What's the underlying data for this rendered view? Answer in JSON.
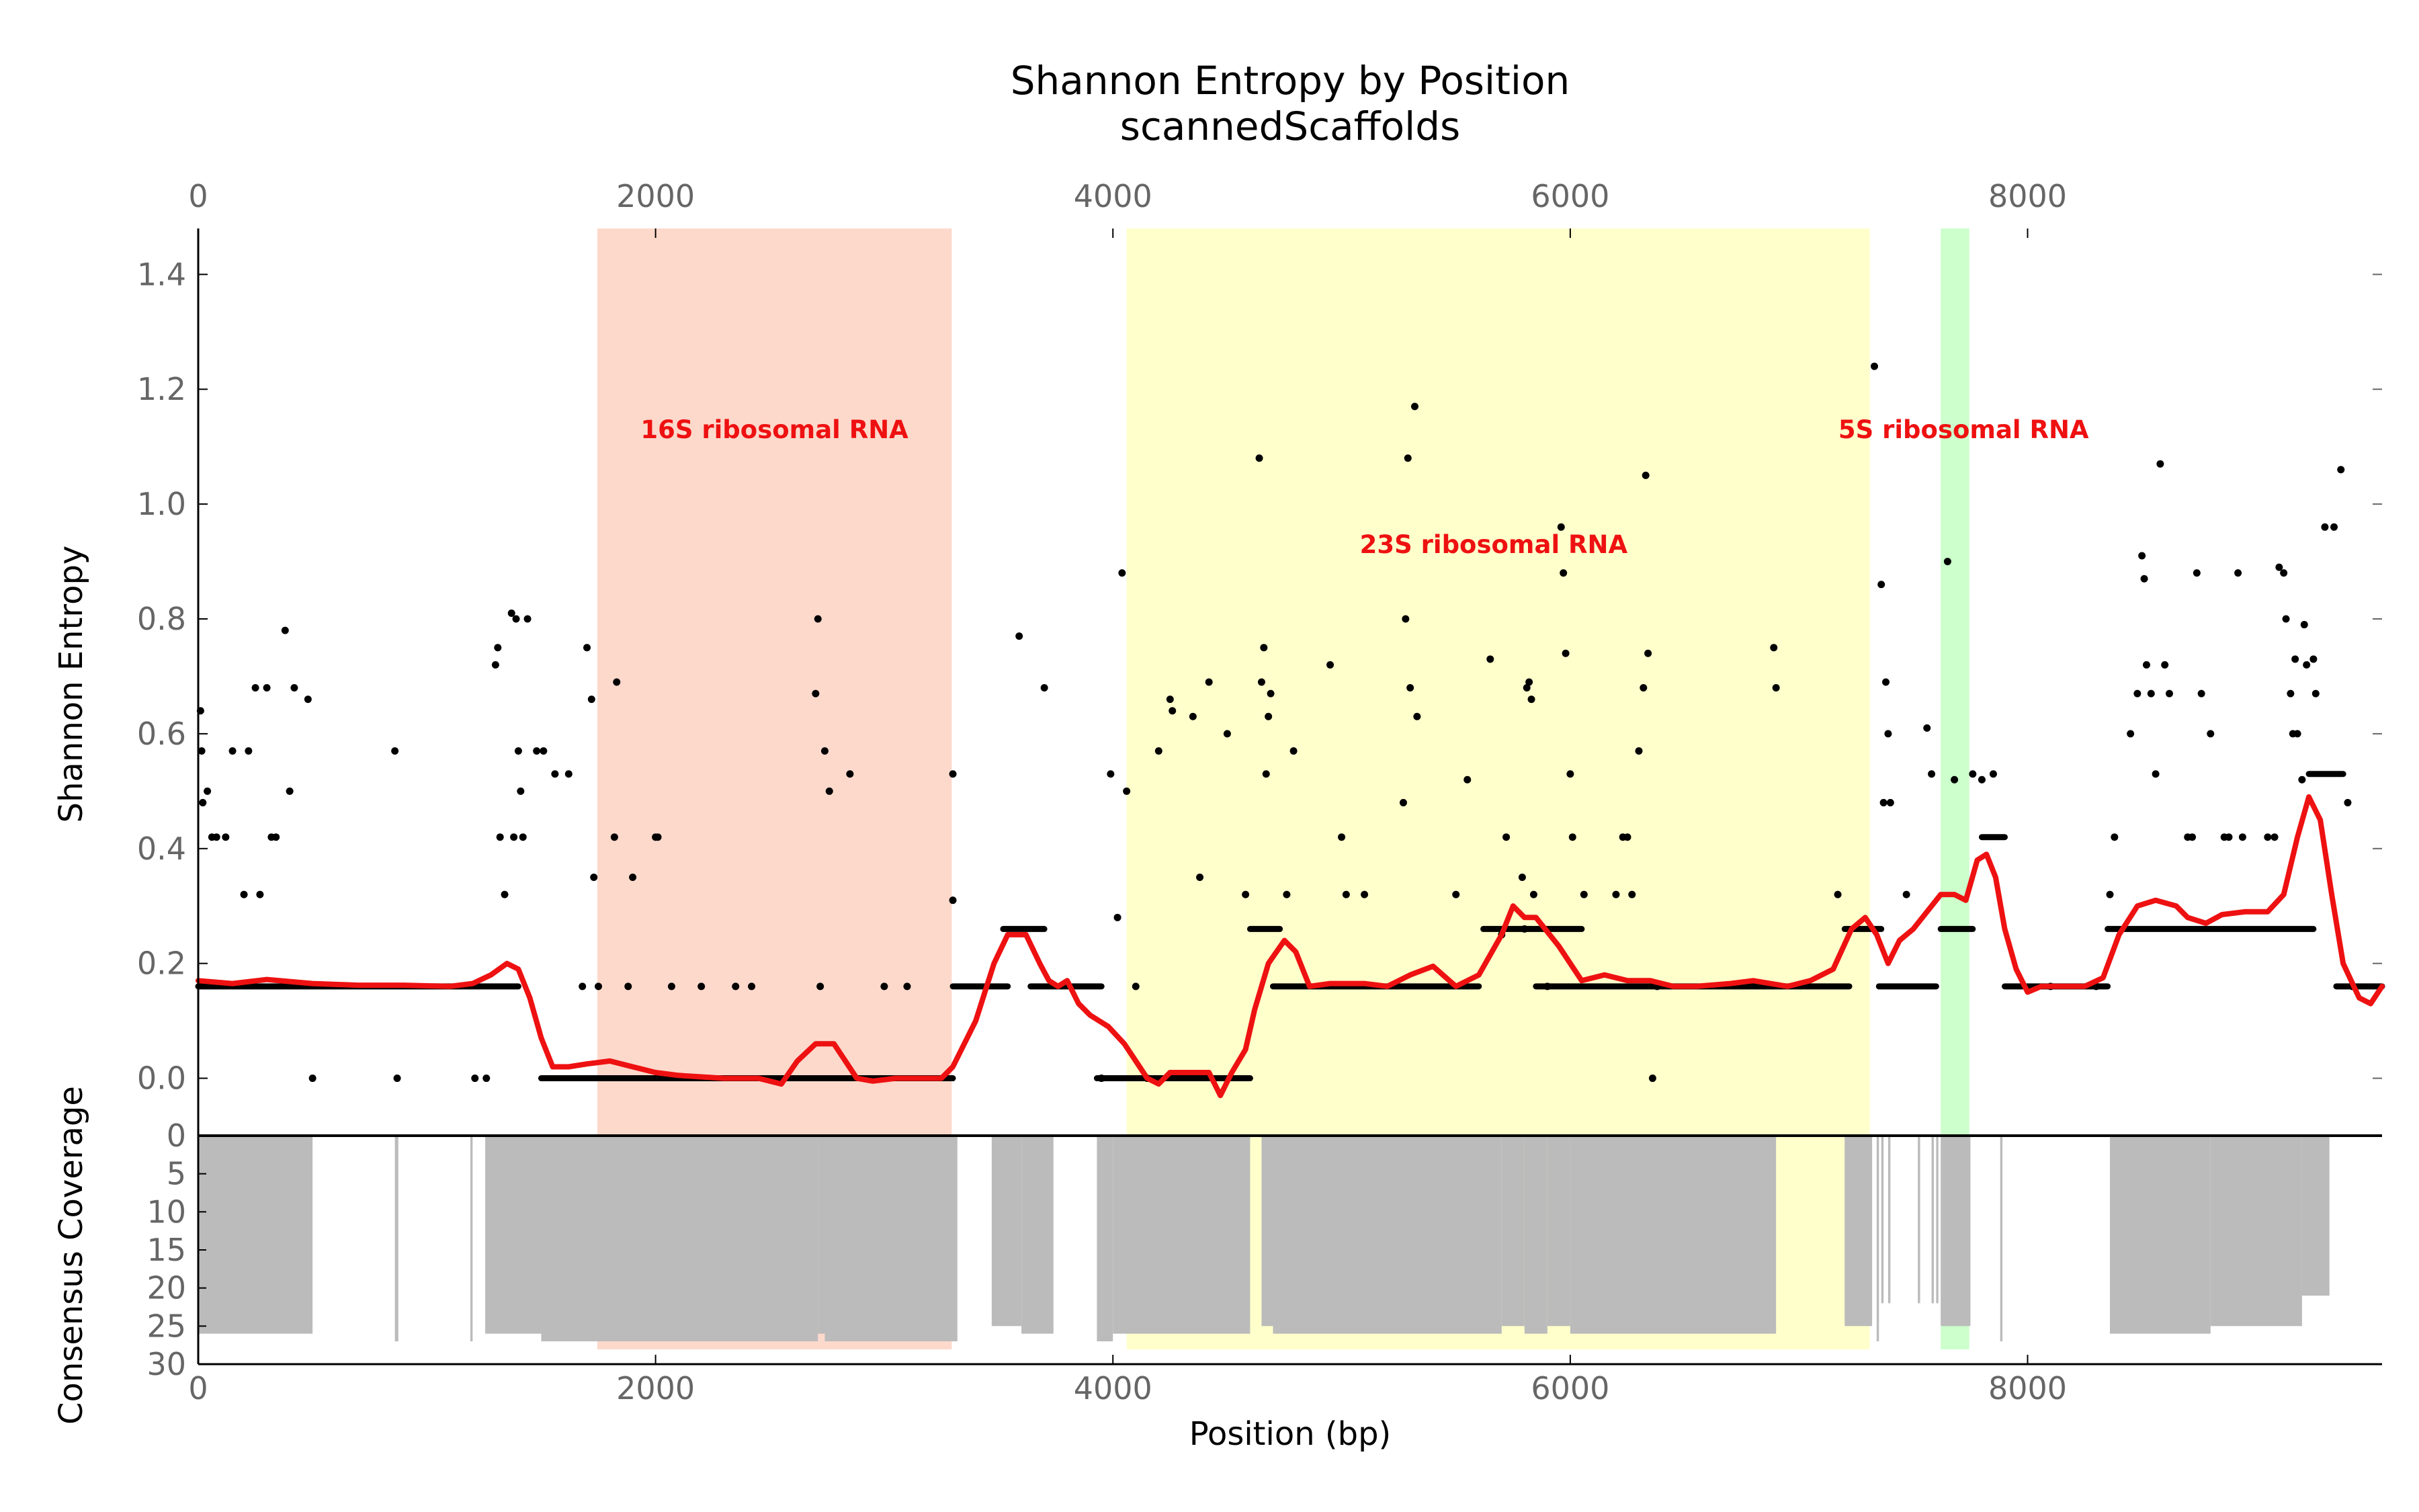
{
  "chart_data": {
    "type": "scatter",
    "title": "Shannon Entropy by Position",
    "subtitle": "scannedScaffolds",
    "xlabel": "Position (bp)",
    "ylabel_top": "Shannon Entropy",
    "ylabel_bottom": "Consensus Coverage",
    "xlim": [
      0,
      9550
    ],
    "ylim_entropy": [
      -0.1,
      1.48
    ],
    "ylim_coverage": [
      0,
      30
    ],
    "x_ticks": [
      0,
      2000,
      4000,
      6000,
      8000
    ],
    "x_tick_labels": [
      "0",
      "2000",
      "4000",
      "6000",
      "8000"
    ],
    "y_ticks_entropy": [
      0.0,
      0.2,
      0.4,
      0.6,
      0.8,
      1.0,
      1.2,
      1.4
    ],
    "y_tick_labels_entropy": [
      "0.0",
      "0.2",
      "0.4",
      "0.6",
      "0.8",
      "1.0",
      "1.2",
      "1.4"
    ],
    "y_ticks_coverage": [
      0,
      5,
      10,
      15,
      20,
      25,
      30
    ],
    "y_tick_labels_coverage": [
      "0",
      "5",
      "10",
      "15",
      "20",
      "25",
      "30"
    ],
    "grid": false,
    "colors": {
      "smooth_line": "#ee1111",
      "points": "#000000",
      "coverage": "#bbbbbb",
      "label_text": "#ee1111"
    },
    "regions": [
      {
        "name": "16S ribosomal RNA",
        "start": 1745,
        "end": 3295,
        "color": "#fdd9cc",
        "label_x": 2520,
        "label_y": 1.115
      },
      {
        "name": "23S ribosomal RNA",
        "start": 4060,
        "end": 7310,
        "color": "#ffffcc",
        "label_x": 5665,
        "label_y": 0.915
      },
      {
        "name": "5S ribosomal RNA",
        "start": 7620,
        "end": 7745,
        "color": "#ccffcc",
        "label_x": 7720,
        "label_y": 1.115
      }
    ],
    "smooth_line": [
      [
        0,
        0.17
      ],
      [
        150,
        0.165
      ],
      [
        300,
        0.172
      ],
      [
        500,
        0.165
      ],
      [
        700,
        0.162
      ],
      [
        900,
        0.162
      ],
      [
        1100,
        0.16
      ],
      [
        1200,
        0.165
      ],
      [
        1280,
        0.18
      ],
      [
        1350,
        0.2
      ],
      [
        1400,
        0.19
      ],
      [
        1450,
        0.14
      ],
      [
        1500,
        0.07
      ],
      [
        1550,
        0.02
      ],
      [
        1620,
        0.02
      ],
      [
        1700,
        0.025
      ],
      [
        1800,
        0.03
      ],
      [
        1900,
        0.02
      ],
      [
        2000,
        0.01
      ],
      [
        2100,
        0.005
      ],
      [
        2300,
        0.0
      ],
      [
        2450,
        0.0
      ],
      [
        2550,
        -0.01
      ],
      [
        2620,
        0.03
      ],
      [
        2700,
        0.06
      ],
      [
        2780,
        0.06
      ],
      [
        2830,
        0.03
      ],
      [
        2880,
        0.0
      ],
      [
        2950,
        -0.005
      ],
      [
        3050,
        0.0
      ],
      [
        3150,
        0.0
      ],
      [
        3250,
        0.0
      ],
      [
        3300,
        0.02
      ],
      [
        3400,
        0.1
      ],
      [
        3480,
        0.2
      ],
      [
        3540,
        0.25
      ],
      [
        3620,
        0.25
      ],
      [
        3680,
        0.2
      ],
      [
        3720,
        0.17
      ],
      [
        3760,
        0.16
      ],
      [
        3800,
        0.17
      ],
      [
        3850,
        0.13
      ],
      [
        3900,
        0.11
      ],
      [
        3980,
        0.09
      ],
      [
        4050,
        0.06
      ],
      [
        4100,
        0.03
      ],
      [
        4150,
        0.0
      ],
      [
        4200,
        -0.01
      ],
      [
        4250,
        0.01
      ],
      [
        4350,
        0.01
      ],
      [
        4420,
        0.01
      ],
      [
        4470,
        -0.03
      ],
      [
        4520,
        0.01
      ],
      [
        4580,
        0.05
      ],
      [
        4620,
        0.12
      ],
      [
        4680,
        0.2
      ],
      [
        4750,
        0.24
      ],
      [
        4800,
        0.22
      ],
      [
        4860,
        0.16
      ],
      [
        4950,
        0.165
      ],
      [
        5100,
        0.165
      ],
      [
        5200,
        0.16
      ],
      [
        5300,
        0.18
      ],
      [
        5400,
        0.195
      ],
      [
        5500,
        0.16
      ],
      [
        5600,
        0.18
      ],
      [
        5700,
        0.25
      ],
      [
        5750,
        0.3
      ],
      [
        5800,
        0.28
      ],
      [
        5850,
        0.28
      ],
      [
        5950,
        0.23
      ],
      [
        6050,
        0.17
      ],
      [
        6150,
        0.18
      ],
      [
        6250,
        0.17
      ],
      [
        6350,
        0.17
      ],
      [
        6450,
        0.16
      ],
      [
        6550,
        0.16
      ],
      [
        6700,
        0.165
      ],
      [
        6800,
        0.17
      ],
      [
        6950,
        0.16
      ],
      [
        7050,
        0.17
      ],
      [
        7150,
        0.19
      ],
      [
        7230,
        0.26
      ],
      [
        7290,
        0.28
      ],
      [
        7340,
        0.25
      ],
      [
        7390,
        0.2
      ],
      [
        7440,
        0.24
      ],
      [
        7500,
        0.26
      ],
      [
        7560,
        0.29
      ],
      [
        7620,
        0.32
      ],
      [
        7680,
        0.32
      ],
      [
        7730,
        0.31
      ],
      [
        7780,
        0.38
      ],
      [
        7820,
        0.39
      ],
      [
        7860,
        0.35
      ],
      [
        7900,
        0.26
      ],
      [
        7950,
        0.19
      ],
      [
        8000,
        0.15
      ],
      [
        8060,
        0.16
      ],
      [
        8150,
        0.16
      ],
      [
        8250,
        0.16
      ],
      [
        8330,
        0.175
      ],
      [
        8400,
        0.25
      ],
      [
        8480,
        0.3
      ],
      [
        8560,
        0.31
      ],
      [
        8650,
        0.3
      ],
      [
        8700,
        0.28
      ],
      [
        8780,
        0.27
      ],
      [
        8850,
        0.285
      ],
      [
        8950,
        0.29
      ],
      [
        9050,
        0.29
      ],
      [
        9120,
        0.32
      ],
      [
        9180,
        0.42
      ],
      [
        9230,
        0.49
      ],
      [
        9280,
        0.45
      ],
      [
        9330,
        0.32
      ],
      [
        9380,
        0.2
      ],
      [
        9450,
        0.14
      ],
      [
        9500,
        0.13
      ],
      [
        9550,
        0.16
      ]
    ],
    "baseline_runs": [
      {
        "start": 0,
        "end": 1400,
        "value": 0.16
      },
      {
        "start": 1500,
        "end": 3300,
        "value": 0.0
      },
      {
        "start": 3300,
        "end": 3540,
        "value": 0.16
      },
      {
        "start": 3520,
        "end": 3700,
        "value": 0.26
      },
      {
        "start": 3640,
        "end": 3950,
        "value": 0.16
      },
      {
        "start": 3930,
        "end": 4600,
        "value": 0.0
      },
      {
        "start": 4600,
        "end": 4730,
        "value": 0.26
      },
      {
        "start": 4700,
        "end": 5600,
        "value": 0.16
      },
      {
        "start": 5620,
        "end": 6050,
        "value": 0.26
      },
      {
        "start": 5850,
        "end": 7220,
        "value": 0.16
      },
      {
        "start": 7200,
        "end": 7360,
        "value": 0.26
      },
      {
        "start": 7350,
        "end": 7600,
        "value": 0.16
      },
      {
        "start": 7620,
        "end": 7760,
        "value": 0.26
      },
      {
        "start": 7800,
        "end": 7900,
        "value": 0.42
      },
      {
        "start": 7900,
        "end": 8350,
        "value": 0.16
      },
      {
        "start": 8350,
        "end": 9250,
        "value": 0.26
      },
      {
        "start": 9230,
        "end": 9380,
        "value": 0.53
      },
      {
        "start": 9350,
        "end": 9550,
        "value": 0.16
      }
    ],
    "scatter_points": [
      [
        10,
        0.64
      ],
      [
        15,
        0.57
      ],
      [
        20,
        0.48
      ],
      [
        40,
        0.5
      ],
      [
        60,
        0.42
      ],
      [
        80,
        0.42
      ],
      [
        120,
        0.42
      ],
      [
        150,
        0.57
      ],
      [
        200,
        0.32
      ],
      [
        220,
        0.57
      ],
      [
        250,
        0.68
      ],
      [
        270,
        0.32
      ],
      [
        300,
        0.68
      ],
      [
        320,
        0.42
      ],
      [
        340,
        0.42
      ],
      [
        380,
        0.78
      ],
      [
        400,
        0.5
      ],
      [
        420,
        0.68
      ],
      [
        480,
        0.66
      ],
      [
        500,
        0.0
      ],
      [
        860,
        0.57
      ],
      [
        870,
        0.0
      ],
      [
        1210,
        0.0
      ],
      [
        1260,
        0.0
      ],
      [
        1300,
        0.72
      ],
      [
        1310,
        0.75
      ],
      [
        1320,
        0.42
      ],
      [
        1340,
        0.32
      ],
      [
        1370,
        0.81
      ],
      [
        1380,
        0.42
      ],
      [
        1390,
        0.8
      ],
      [
        1400,
        0.57
      ],
      [
        1410,
        0.5
      ],
      [
        1420,
        0.42
      ],
      [
        1440,
        0.8
      ],
      [
        1480,
        0.57
      ],
      [
        1510,
        0.57
      ],
      [
        1560,
        0.53
      ],
      [
        1620,
        0.53
      ],
      [
        1680,
        0.16
      ],
      [
        1700,
        0.75
      ],
      [
        1720,
        0.66
      ],
      [
        1730,
        0.35
      ],
      [
        1750,
        0.16
      ],
      [
        1820,
        0.42
      ],
      [
        1830,
        0.69
      ],
      [
        1880,
        0.16
      ],
      [
        1900,
        0.35
      ],
      [
        2000,
        0.42
      ],
      [
        2010,
        0.42
      ],
      [
        2070,
        0.16
      ],
      [
        2200,
        0.16
      ],
      [
        2350,
        0.16
      ],
      [
        2420,
        0.16
      ],
      [
        2700,
        0.67
      ],
      [
        2710,
        0.8
      ],
      [
        2720,
        0.16
      ],
      [
        2740,
        0.57
      ],
      [
        2760,
        0.5
      ],
      [
        2850,
        0.53
      ],
      [
        3000,
        0.16
      ],
      [
        3100,
        0.16
      ],
      [
        3300,
        0.53
      ],
      [
        3300,
        0.31
      ],
      [
        3590,
        0.77
      ],
      [
        3700,
        0.68
      ],
      [
        3950,
        0.0
      ],
      [
        3990,
        0.53
      ],
      [
        4020,
        0.28
      ],
      [
        4040,
        0.88
      ],
      [
        4060,
        0.5
      ],
      [
        4100,
        0.16
      ],
      [
        4150,
        0.0
      ],
      [
        4200,
        0.57
      ],
      [
        4250,
        0.66
      ],
      [
        4260,
        0.64
      ],
      [
        4350,
        0.63
      ],
      [
        4380,
        0.35
      ],
      [
        4420,
        0.69
      ],
      [
        4500,
        0.6
      ],
      [
        4580,
        0.32
      ],
      [
        4640,
        1.08
      ],
      [
        4650,
        0.69
      ],
      [
        4660,
        0.75
      ],
      [
        4670,
        0.53
      ],
      [
        4680,
        0.63
      ],
      [
        4690,
        0.67
      ],
      [
        4760,
        0.32
      ],
      [
        4790,
        0.57
      ],
      [
        4950,
        0.72
      ],
      [
        5000,
        0.42
      ],
      [
        5020,
        0.32
      ],
      [
        5100,
        0.32
      ],
      [
        5270,
        0.48
      ],
      [
        5280,
        0.8
      ],
      [
        5290,
        1.08
      ],
      [
        5300,
        0.68
      ],
      [
        5320,
        1.17
      ],
      [
        5330,
        0.63
      ],
      [
        5500,
        0.32
      ],
      [
        5550,
        0.52
      ],
      [
        5650,
        0.73
      ],
      [
        5700,
        0.25
      ],
      [
        5720,
        0.42
      ],
      [
        5790,
        0.35
      ],
      [
        5800,
        0.26
      ],
      [
        5810,
        0.68
      ],
      [
        5820,
        0.69
      ],
      [
        5830,
        0.66
      ],
      [
        5840,
        0.32
      ],
      [
        5900,
        0.16
      ],
      [
        5960,
        0.96
      ],
      [
        5970,
        0.88
      ],
      [
        5980,
        0.74
      ],
      [
        6000,
        0.53
      ],
      [
        6010,
        0.42
      ],
      [
        6060,
        0.32
      ],
      [
        6200,
        0.32
      ],
      [
        6230,
        0.42
      ],
      [
        6250,
        0.42
      ],
      [
        6270,
        0.32
      ],
      [
        6300,
        0.57
      ],
      [
        6320,
        0.68
      ],
      [
        6330,
        1.05
      ],
      [
        6340,
        0.74
      ],
      [
        6360,
        0.0
      ],
      [
        6380,
        0.16
      ],
      [
        6890,
        0.75
      ],
      [
        6900,
        0.68
      ],
      [
        7170,
        0.32
      ],
      [
        7330,
        1.24
      ],
      [
        7360,
        0.86
      ],
      [
        7370,
        0.48
      ],
      [
        7380,
        0.69
      ],
      [
        7390,
        0.6
      ],
      [
        7400,
        0.48
      ],
      [
        7470,
        0.32
      ],
      [
        7560,
        0.61
      ],
      [
        7580,
        0.53
      ],
      [
        7650,
        0.9
      ],
      [
        7680,
        0.52
      ],
      [
        7760,
        0.53
      ],
      [
        7800,
        0.52
      ],
      [
        7850,
        0.53
      ],
      [
        8100,
        0.16
      ],
      [
        8300,
        0.16
      ],
      [
        8360,
        0.32
      ],
      [
        8380,
        0.42
      ],
      [
        8450,
        0.6
      ],
      [
        8480,
        0.67
      ],
      [
        8500,
        0.91
      ],
      [
        8510,
        0.87
      ],
      [
        8520,
        0.72
      ],
      [
        8540,
        0.67
      ],
      [
        8560,
        0.53
      ],
      [
        8580,
        1.07
      ],
      [
        8600,
        0.72
      ],
      [
        8620,
        0.67
      ],
      [
        8700,
        0.42
      ],
      [
        8720,
        0.42
      ],
      [
        8740,
        0.88
      ],
      [
        8760,
        0.67
      ],
      [
        8800,
        0.6
      ],
      [
        8860,
        0.42
      ],
      [
        8880,
        0.42
      ],
      [
        8920,
        0.88
      ],
      [
        8940,
        0.42
      ],
      [
        9050,
        0.42
      ],
      [
        9080,
        0.42
      ],
      [
        9100,
        0.89
      ],
      [
        9120,
        0.88
      ],
      [
        9130,
        0.8
      ],
      [
        9150,
        0.67
      ],
      [
        9160,
        0.6
      ],
      [
        9170,
        0.73
      ],
      [
        9180,
        0.6
      ],
      [
        9200,
        0.52
      ],
      [
        9210,
        0.79
      ],
      [
        9220,
        0.72
      ],
      [
        9250,
        0.73
      ],
      [
        9260,
        0.67
      ],
      [
        9300,
        0.96
      ],
      [
        9340,
        0.96
      ],
      [
        9370,
        1.06
      ],
      [
        9400,
        0.48
      ],
      [
        9420,
        0.16
      ]
    ],
    "coverage_segments": [
      {
        "start": 0,
        "end": 500,
        "value": 26
      },
      {
        "start": 860,
        "end": 875,
        "value": 27
      },
      {
        "start": 1190,
        "end": 1200,
        "value": 27
      },
      {
        "start": 1255,
        "end": 1500,
        "value": 26
      },
      {
        "start": 1500,
        "end": 2710,
        "value": 27
      },
      {
        "start": 2710,
        "end": 2740,
        "value": 26
      },
      {
        "start": 2740,
        "end": 3320,
        "value": 27
      },
      {
        "start": 3470,
        "end": 3600,
        "value": 25
      },
      {
        "start": 3600,
        "end": 3740,
        "value": 26
      },
      {
        "start": 3930,
        "end": 4000,
        "value": 27
      },
      {
        "start": 4000,
        "end": 4600,
        "value": 26
      },
      {
        "start": 4650,
        "end": 4700,
        "value": 25
      },
      {
        "start": 4700,
        "end": 5700,
        "value": 26
      },
      {
        "start": 5700,
        "end": 5800,
        "value": 25
      },
      {
        "start": 5800,
        "end": 5900,
        "value": 26
      },
      {
        "start": 5900,
        "end": 6000,
        "value": 25
      },
      {
        "start": 6000,
        "end": 6900,
        "value": 26
      },
      {
        "start": 7200,
        "end": 7320,
        "value": 25
      },
      {
        "start": 7340,
        "end": 7350,
        "value": 27
      },
      {
        "start": 7360,
        "end": 7370,
        "value": 22
      },
      {
        "start": 7390,
        "end": 7400,
        "value": 22
      },
      {
        "start": 7520,
        "end": 7530,
        "value": 22
      },
      {
        "start": 7580,
        "end": 7590,
        "value": 22
      },
      {
        "start": 7600,
        "end": 7610,
        "value": 22
      },
      {
        "start": 7620,
        "end": 7750,
        "value": 25
      },
      {
        "start": 7880,
        "end": 7890,
        "value": 27
      },
      {
        "start": 8360,
        "end": 8800,
        "value": 26
      },
      {
        "start": 8800,
        "end": 9200,
        "value": 25
      },
      {
        "start": 9200,
        "end": 9320,
        "value": 21
      }
    ]
  }
}
